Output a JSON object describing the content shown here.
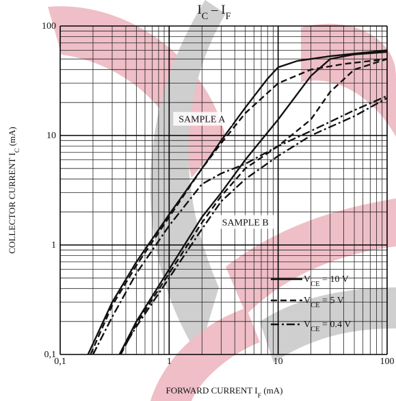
{
  "chart_data": {
    "type": "line",
    "log_x": true,
    "log_y": true,
    "grid": true,
    "title": {
      "parts": [
        {
          "text": "I"
        },
        {
          "text": "C",
          "sub": true
        },
        {
          "text": " – I"
        },
        {
          "text": "F",
          "sub": true
        }
      ]
    },
    "xlabel": {
      "parts": [
        {
          "text": "FORWARD CURRENT  I"
        },
        {
          "text": "F",
          "sub": true
        },
        {
          "text": "  (mA)"
        }
      ]
    },
    "ylabel": {
      "parts": [
        {
          "text": "COLLECTOR CURRENT  I"
        },
        {
          "text": "C",
          "sub": true
        },
        {
          "text": "  (mA)"
        }
      ]
    },
    "xlim": [
      0.1,
      100
    ],
    "ylim": [
      0.1,
      100
    ],
    "xticks": [
      {
        "value": 0.1,
        "label": "0,1"
      },
      1,
      10,
      100
    ],
    "yticks": [
      {
        "value": 0.1,
        "label": "0,1"
      },
      1,
      10,
      100
    ],
    "xminor": [
      0.2,
      0.3,
      0.4,
      0.5,
      0.6,
      0.7,
      0.8,
      0.9,
      2,
      3,
      4,
      5,
      6,
      7,
      8,
      9,
      20,
      30,
      40,
      50,
      60,
      70,
      80,
      90
    ],
    "yminor": [
      0.2,
      0.3,
      0.4,
      0.5,
      0.6,
      0.7,
      0.8,
      0.9,
      2,
      3,
      4,
      5,
      6,
      7,
      8,
      9,
      20,
      30,
      40,
      50,
      60,
      70,
      80,
      90
    ],
    "color": "#111111",
    "legend": [
      {
        "dash": "solid",
        "parts": [
          {
            "text": "V"
          },
          {
            "text": "CE",
            "sub": true
          },
          {
            "text": " = 10 V"
          }
        ]
      },
      {
        "dash": "dashed",
        "parts": [
          {
            "text": "V"
          },
          {
            "text": "CE",
            "sub": true
          },
          {
            "text": " = 5 V"
          }
        ]
      },
      {
        "dash": "dashdot",
        "parts": [
          {
            "text": "V"
          },
          {
            "text": "CE",
            "sub": true
          },
          {
            "text": " = 0.4 V"
          }
        ]
      }
    ],
    "series": [
      {
        "label": "SAMPLE A",
        "label_at": [
          2,
          14
        ],
        "curves": [
          {
            "style": 0,
            "x": [
              0.18,
              0.3,
              0.5,
              1,
              2,
              3,
              5,
              8,
              10,
              15,
              30,
              100
            ],
            "values": [
              0.1,
              0.3,
              0.7,
              1.9,
              5,
              9,
              18,
              33,
              42,
              48,
              53,
              60
            ]
          },
          {
            "style": 1,
            "x": [
              0.19,
              0.3,
              0.5,
              1,
              2,
              3,
              5,
              10,
              20,
              40,
              100
            ],
            "values": [
              0.1,
              0.28,
              0.65,
              1.8,
              5,
              8.5,
              16,
              30,
              40,
              45,
              50
            ]
          },
          {
            "style": 2,
            "x": [
              0.2,
              0.3,
              0.5,
              1,
              2,
              3,
              5,
              10,
              20,
              50,
              100
            ],
            "values": [
              0.1,
              0.22,
              0.55,
              1.5,
              3.6,
              4.5,
              5.5,
              8,
              11,
              17,
              23
            ]
          }
        ]
      },
      {
        "label": "SAMPLE B",
        "label_at": [
          5,
          1.6
        ],
        "curves": [
          {
            "style": 0,
            "x": [
              0.35,
              0.5,
              1,
              2,
              3,
              5,
              10,
              20,
              30,
              50,
              100
            ],
            "values": [
              0.1,
              0.2,
              0.6,
              1.8,
              3,
              6,
              14,
              35,
              50,
              55,
              58
            ]
          },
          {
            "style": 1,
            "x": [
              0.36,
              0.5,
              1,
              2,
              3,
              5,
              10,
              20,
              30,
              50,
              100
            ],
            "values": [
              0.1,
              0.19,
              0.55,
              1.6,
              2.8,
              5,
              8,
              14,
              25,
              40,
              50
            ]
          },
          {
            "style": 2,
            "x": [
              0.35,
              0.5,
              1,
              2,
              3,
              5,
              10,
              20,
              50,
              100
            ],
            "values": [
              0.1,
              0.18,
              0.5,
              1.4,
              2.5,
              4,
              6.5,
              10,
              15,
              22
            ]
          }
        ]
      }
    ]
  }
}
